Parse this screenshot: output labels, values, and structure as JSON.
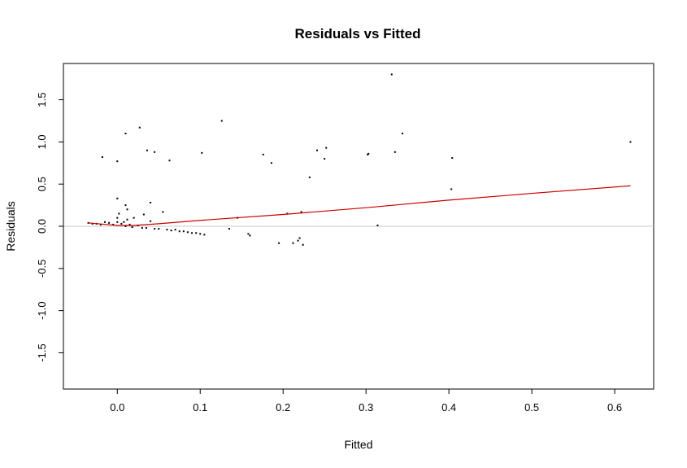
{
  "chart_data": {
    "type": "scatter",
    "title": "Residuals vs Fitted",
    "xlabel": "Fitted",
    "ylabel": "Residuals",
    "xlim": [
      -0.065,
      0.647
    ],
    "ylim": [
      -1.93,
      1.93
    ],
    "x_ticks": [
      0.0,
      0.1,
      0.2,
      0.3,
      0.4,
      0.5,
      0.6
    ],
    "x_tick_labels": [
      "0.0",
      "0.1",
      "0.2",
      "0.3",
      "0.4",
      "0.5",
      "0.6"
    ],
    "y_ticks": [
      -1.5,
      -1.0,
      -0.5,
      0.0,
      0.5,
      1.0,
      1.5
    ],
    "y_tick_labels": [
      "-1.5",
      "-1.0",
      "-0.5",
      "0.0",
      "0.5",
      "1.0",
      "1.5"
    ],
    "grid": false,
    "reference_line": {
      "y": 0,
      "color": "#c8c8c8"
    },
    "point_color": "#000000",
    "smooth_color": "#cc0000",
    "points": [
      {
        "x": -0.035,
        "y": 0.04
      },
      {
        "x": -0.03,
        "y": 0.03
      },
      {
        "x": -0.025,
        "y": 0.03
      },
      {
        "x": -0.02,
        "y": 0.02
      },
      {
        "x": -0.015,
        "y": 0.05
      },
      {
        "x": -0.01,
        "y": 0.04
      },
      {
        "x": -0.005,
        "y": 0.02
      },
      {
        "x": 0.0,
        "y": 0.05
      },
      {
        "x": 0.0,
        "y": 0.1
      },
      {
        "x": 0.002,
        "y": 0.15
      },
      {
        "x": 0.005,
        "y": 0.03
      },
      {
        "x": 0.008,
        "y": 0.05
      },
      {
        "x": 0.01,
        "y": 0.0
      },
      {
        "x": 0.012,
        "y": 0.08
      },
      {
        "x": 0.015,
        "y": 0.02
      },
      {
        "x": 0.018,
        "y": -0.01
      },
      {
        "x": 0.02,
        "y": 0.1
      },
      {
        "x": 0.025,
        "y": 0.01
      },
      {
        "x": 0.03,
        "y": -0.02
      },
      {
        "x": 0.032,
        "y": 0.14
      },
      {
        "x": 0.035,
        "y": -0.02
      },
      {
        "x": 0.04,
        "y": 0.06
      },
      {
        "x": 0.045,
        "y": -0.03
      },
      {
        "x": 0.05,
        "y": -0.03
      },
      {
        "x": 0.055,
        "y": 0.17
      },
      {
        "x": 0.06,
        "y": -0.04
      },
      {
        "x": 0.065,
        "y": -0.05
      },
      {
        "x": 0.07,
        "y": -0.04
      },
      {
        "x": 0.075,
        "y": -0.06
      },
      {
        "x": 0.08,
        "y": -0.06
      },
      {
        "x": 0.085,
        "y": -0.07
      },
      {
        "x": 0.09,
        "y": -0.08
      },
      {
        "x": 0.095,
        "y": -0.08
      },
      {
        "x": 0.1,
        "y": -0.09
      },
      {
        "x": 0.105,
        "y": -0.1
      },
      {
        "x": 0.0,
        "y": 0.33
      },
      {
        "x": 0.01,
        "y": 0.25
      },
      {
        "x": 0.012,
        "y": 0.2
      },
      {
        "x": 0.04,
        "y": 0.28
      },
      {
        "x": -0.018,
        "y": 0.82
      },
      {
        "x": 0.0,
        "y": 0.77
      },
      {
        "x": 0.01,
        "y": 1.1
      },
      {
        "x": 0.027,
        "y": 1.17
      },
      {
        "x": 0.036,
        "y": 0.9
      },
      {
        "x": 0.045,
        "y": 0.88
      },
      {
        "x": 0.063,
        "y": 0.78
      },
      {
        "x": 0.102,
        "y": 0.87
      },
      {
        "x": 0.126,
        "y": 1.25
      },
      {
        "x": 0.135,
        "y": -0.03
      },
      {
        "x": 0.145,
        "y": 0.1
      },
      {
        "x": 0.158,
        "y": -0.09
      },
      {
        "x": 0.16,
        "y": -0.11
      },
      {
        "x": 0.176,
        "y": 0.85
      },
      {
        "x": 0.186,
        "y": 0.75
      },
      {
        "x": 0.195,
        "y": -0.2
      },
      {
        "x": 0.205,
        "y": 0.15
      },
      {
        "x": 0.212,
        "y": -0.2
      },
      {
        "x": 0.218,
        "y": -0.17
      },
      {
        "x": 0.22,
        "y": -0.14
      },
      {
        "x": 0.222,
        "y": 0.17
      },
      {
        "x": 0.224,
        "y": -0.22
      },
      {
        "x": 0.232,
        "y": 0.58
      },
      {
        "x": 0.241,
        "y": 0.9
      },
      {
        "x": 0.25,
        "y": 0.8
      },
      {
        "x": 0.252,
        "y": 0.93
      },
      {
        "x": 0.302,
        "y": 0.85
      },
      {
        "x": 0.303,
        "y": 0.86
      },
      {
        "x": 0.314,
        "y": 0.01
      },
      {
        "x": 0.331,
        "y": 1.8
      },
      {
        "x": 0.335,
        "y": 0.88
      },
      {
        "x": 0.344,
        "y": 1.1
      },
      {
        "x": 0.403,
        "y": 0.44
      },
      {
        "x": 0.404,
        "y": 0.81
      },
      {
        "x": 0.619,
        "y": 1.0
      }
    ],
    "smooth_line": [
      {
        "x": -0.035,
        "y": 0.04
      },
      {
        "x": 0.0,
        "y": 0.01
      },
      {
        "x": 0.02,
        "y": 0.01
      },
      {
        "x": 0.05,
        "y": 0.03
      },
      {
        "x": 0.1,
        "y": 0.07
      },
      {
        "x": 0.2,
        "y": 0.14
      },
      {
        "x": 0.3,
        "y": 0.22
      },
      {
        "x": 0.4,
        "y": 0.31
      },
      {
        "x": 0.5,
        "y": 0.39
      },
      {
        "x": 0.619,
        "y": 0.48
      }
    ]
  }
}
